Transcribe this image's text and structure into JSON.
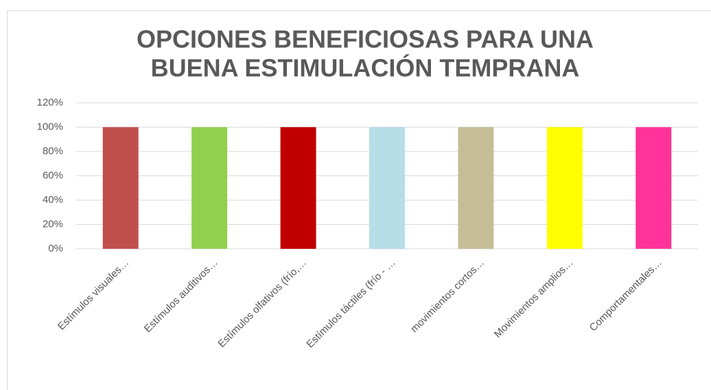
{
  "chart_data": {
    "type": "bar",
    "title": [
      "OPCIONES BENEFICIOSAS PARA UNA",
      "BUENA ESTIMULACIÓN TEMPRANA"
    ],
    "categories": [
      "Estímulos visuales…",
      "Estímulos auditivos…",
      "Estímulos olfativos (frío,…",
      "Estímulos táctiles (frío - …",
      "movimientos cortos…",
      "Movimientos amplios…",
      "Comportamentales…"
    ],
    "values": [
      100,
      100,
      100,
      100,
      100,
      100,
      100
    ],
    "colors": [
      "#c0504d",
      "#92d050",
      "#c00000",
      "#b7dde8",
      "#c4bd97",
      "#ffff00",
      "#ff3399"
    ],
    "ylim": [
      0,
      120
    ],
    "yticks": [
      {
        "value": 0,
        "label": "0%"
      },
      {
        "value": 20,
        "label": "20%"
      },
      {
        "value": 40,
        "label": "40%"
      },
      {
        "value": 60,
        "label": "60%"
      },
      {
        "value": 80,
        "label": "80%"
      },
      {
        "value": 100,
        "label": "100%"
      },
      {
        "value": 120,
        "label": "120%"
      }
    ],
    "grid": true
  }
}
